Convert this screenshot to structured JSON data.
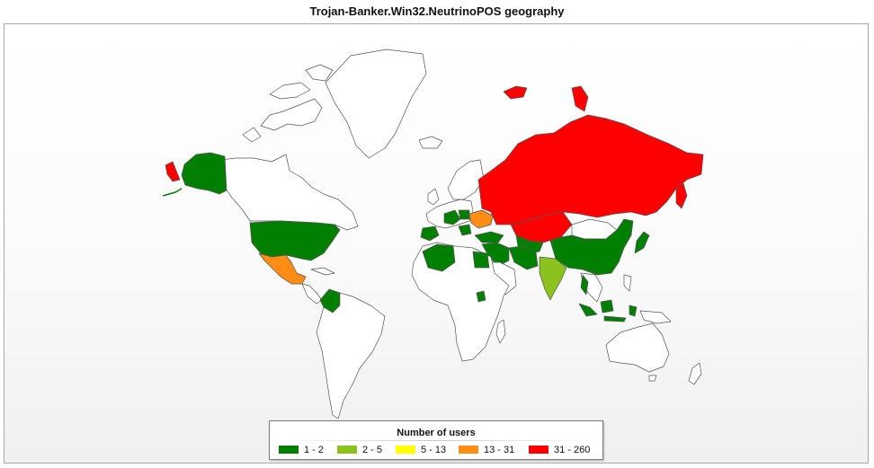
{
  "title": "Trojan-Banker.Win32.NeutrinoPOS  geography",
  "legend": {
    "title": "Number of users",
    "items": [
      {
        "label": "1 - 2",
        "color": "#007f00"
      },
      {
        "label": "2 - 5",
        "color": "#8cc21d"
      },
      {
        "label": "5 - 13",
        "color": "#ffff00"
      },
      {
        "label": "13 - 31",
        "color": "#ff8c14"
      },
      {
        "label": "31 - 260",
        "color": "#ff0000"
      }
    ]
  },
  "colors": {
    "land": "#ffffff",
    "border": "#555555",
    "background": "#f6f6f6"
  },
  "regions": [
    {
      "name": "Russia",
      "range": "31 - 260"
    },
    {
      "name": "Kazakhstan",
      "range": "31 - 260"
    },
    {
      "name": "Svalbard",
      "range": "31 - 260"
    },
    {
      "name": "Novaya Zemlya",
      "range": "31 - 260"
    },
    {
      "name": "Chukotka",
      "range": "31 - 260"
    },
    {
      "name": "Ukraine",
      "range": "13 - 31"
    },
    {
      "name": "Mexico",
      "range": "13 - 31"
    },
    {
      "name": "India",
      "range": "2 - 5"
    },
    {
      "name": "United States",
      "range": "1 - 2"
    },
    {
      "name": "Alaska",
      "range": "1 - 2"
    },
    {
      "name": "China",
      "range": "1 - 2"
    },
    {
      "name": "Japan",
      "range": "1 - 2"
    },
    {
      "name": "Colombia",
      "range": "1 - 2"
    },
    {
      "name": "Indonesia",
      "range": "1 - 2"
    },
    {
      "name": "Turkey",
      "range": "1 - 2"
    },
    {
      "name": "Iran",
      "range": "1 - 2"
    },
    {
      "name": "Algeria",
      "range": "1 - 2"
    },
    {
      "name": "Egypt",
      "range": "1 - 2"
    },
    {
      "name": "Thailand",
      "range": "1 - 2"
    }
  ]
}
